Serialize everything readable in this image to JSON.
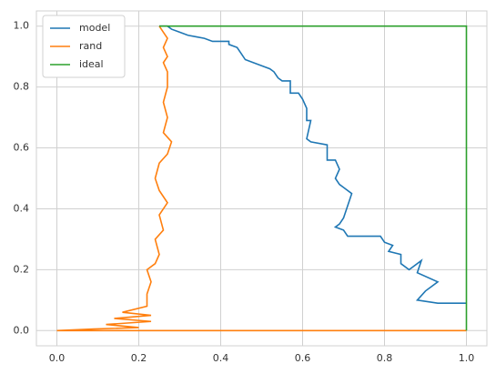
{
  "chart_data": {
    "type": "line",
    "xlim": [
      -0.05,
      1.05
    ],
    "ylim": [
      -0.05,
      1.05
    ],
    "xticks": [
      {
        "value": 0,
        "label": "0.0"
      },
      0.2,
      0.4,
      0.6,
      0.8,
      {
        "value": 1,
        "label": "1.0"
      }
    ],
    "yticks": [
      {
        "value": 0,
        "label": "0.0"
      },
      0.2,
      0.4,
      0.6,
      0.8,
      {
        "value": 1,
        "label": "1.0"
      }
    ],
    "grid": true,
    "legend": "upper left",
    "series": [
      {
        "name": "model",
        "color": "#1f77b4",
        "x": [
          0.25,
          0.27,
          0.28,
          0.3,
          0.32,
          0.34,
          0.36,
          0.38,
          0.42,
          0.42,
          0.44,
          0.45,
          0.46,
          0.48,
          0.5,
          0.52,
          0.53,
          0.54,
          0.55,
          0.57,
          0.57,
          0.57,
          0.59,
          0.6,
          0.61,
          0.61,
          0.62,
          0.61,
          0.62,
          0.66,
          0.66,
          0.68,
          0.69,
          0.68,
          0.69,
          0.7,
          0.72,
          0.71,
          0.7,
          0.69,
          0.68,
          0.7,
          0.71,
          0.79,
          0.8,
          0.82,
          0.81,
          0.84,
          0.84,
          0.86,
          0.89,
          0.88,
          0.93,
          0.9,
          0.88,
          0.93,
          1.0
        ],
        "values": [
          1.0,
          1.0,
          0.99,
          0.98,
          0.97,
          0.965,
          0.96,
          0.95,
          0.95,
          0.94,
          0.93,
          0.91,
          0.89,
          0.88,
          0.87,
          0.86,
          0.85,
          0.83,
          0.82,
          0.82,
          0.8,
          0.78,
          0.78,
          0.76,
          0.73,
          0.69,
          0.69,
          0.63,
          0.62,
          0.61,
          0.56,
          0.56,
          0.53,
          0.5,
          0.48,
          0.47,
          0.45,
          0.41,
          0.37,
          0.35,
          0.34,
          0.33,
          0.31,
          0.31,
          0.29,
          0.28,
          0.26,
          0.25,
          0.22,
          0.2,
          0.23,
          0.19,
          0.16,
          0.13,
          0.1,
          0.09,
          0.09
        ]
      },
      {
        "name": "rand",
        "color": "#ff7f0e",
        "x": [
          1.0,
          0.0,
          0.09,
          0.2,
          0.12,
          0.23,
          0.14,
          0.23,
          0.16,
          0.22,
          0.22,
          0.23,
          0.22,
          0.24,
          0.25,
          0.24,
          0.26,
          0.25,
          0.27,
          0.25,
          0.24,
          0.25,
          0.27,
          0.28,
          0.26,
          0.27,
          0.26,
          0.27,
          0.27,
          0.26,
          0.27,
          0.26,
          0.27,
          0.26,
          0.25
        ],
        "values": [
          0,
          0,
          0.005,
          0.01,
          0.02,
          0.03,
          0.04,
          0.05,
          0.06,
          0.08,
          0.12,
          0.16,
          0.2,
          0.22,
          0.25,
          0.3,
          0.33,
          0.38,
          0.42,
          0.46,
          0.5,
          0.55,
          0.58,
          0.62,
          0.65,
          0.7,
          0.75,
          0.8,
          0.85,
          0.88,
          0.9,
          0.93,
          0.96,
          0.98,
          1.0
        ]
      },
      {
        "name": "ideal",
        "color": "#2ca02c",
        "x": [
          0.25,
          1.0,
          1.0
        ],
        "values": [
          1.0,
          1.0,
          0.0
        ]
      }
    ]
  }
}
